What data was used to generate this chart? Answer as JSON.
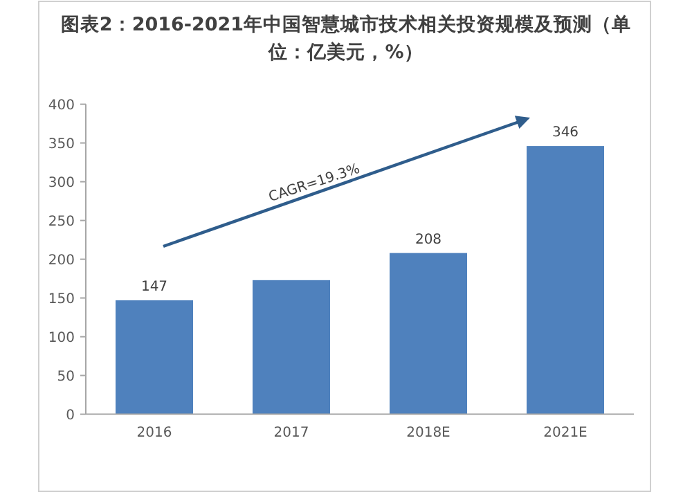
{
  "chart_data": {
    "type": "bar",
    "title": "图表2：2016-2021年中国智慧城市技术相关投资规模及预测（单位：亿美元，%）",
    "categories": [
      "2016",
      "2017",
      "2018E",
      "2021E"
    ],
    "values": [
      147,
      173,
      208,
      346
    ],
    "value_labels": [
      "147",
      null,
      "208",
      "346"
    ],
    "color": "#4f81bd",
    "ylim": [
      0,
      400
    ],
    "yticks": [
      0,
      50,
      100,
      150,
      200,
      250,
      300,
      350,
      400
    ],
    "grid": false,
    "annotations": [
      "CAGR=19.3%"
    ]
  }
}
